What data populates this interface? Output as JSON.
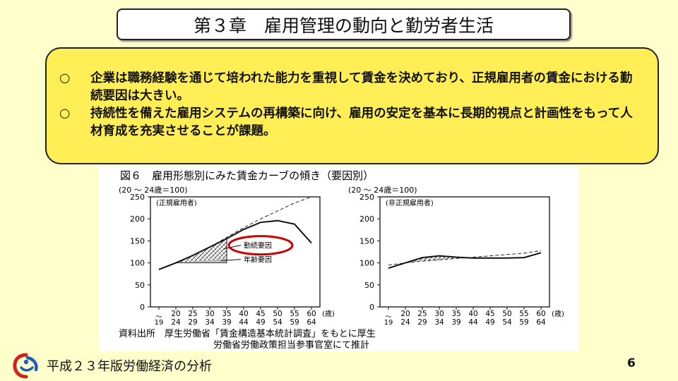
{
  "slide": {
    "title": "第３章　雇用管理の動向と勤労者生活",
    "bullets": [
      {
        "mark": "○",
        "text": "企業は職務経験を通じて培われた能力を重視して賃金を決めており、正規雇用者の賃金における勤続要因は大きい。"
      },
      {
        "mark": "○",
        "text": "持続性を備えた雇用システムの再構築に向け、雇用の安定を基本に長期的視点と計画性をもって人材育成を充実させることが課題。"
      }
    ],
    "footer": "平成２３年版労働経済の分析",
    "page_number": "6"
  },
  "figure": {
    "title": "図６　雇用形態別にみた賃金カーブの傾き（要因別）",
    "source_lines": [
      "資料出所　厚生労働省「賃金構造基本統計調査」をもとに厚生",
      "労働省労働政策担当参事官室にて推計"
    ],
    "y_unit": "(20 ～ 24歳＝100)",
    "x_unit": "(歳)",
    "y_ticks": [
      "0",
      "50",
      "100",
      "150",
      "200",
      "250"
    ],
    "x_ticks_top": [
      "20",
      "25",
      "30",
      "35",
      "40",
      "45",
      "50",
      "55",
      "60"
    ],
    "x_ticks_bottom": [
      "24",
      "29",
      "34",
      "39",
      "44",
      "49",
      "54",
      "59",
      "64"
    ],
    "x_first": "19",
    "panels": [
      {
        "label": "(正規雇用者)",
        "annotations": {
          "tenure": "勤続要因",
          "age": "年齢要因"
        }
      },
      {
        "label": "(非正規雇用者)"
      }
    ],
    "highlight_color": "#cc0000"
  },
  "chart_data": [
    {
      "type": "line",
      "title": "(正規雇用者)",
      "ylabel": "(20 ～ 24歳＝100)",
      "xlabel": "(歳)",
      "categories": [
        "～19",
        "20～24",
        "25～29",
        "30～34",
        "35～39",
        "40～44",
        "45～49",
        "50～54",
        "55～59",
        "60～64"
      ],
      "ylim": [
        0,
        250
      ],
      "series": [
        {
          "values": [
            85,
            100,
            117,
            136,
            155,
            176,
            192,
            196,
            188,
            145
          ]
        },
        {
          "values": [
            85,
            100,
            117,
            136,
            158,
            180,
            200,
            218,
            236,
            250
          ]
        }
      ],
      "shaded_regions": [
        {
          "name": "勤続要因",
          "x_range": [
            "20～24",
            "35～39"
          ],
          "from": 100,
          "to": "series"
        },
        {
          "name": "年齢要因",
          "x_range": [
            "20～24",
            "35～39"
          ],
          "from": 100,
          "to": 110
        }
      ]
    },
    {
      "type": "line",
      "title": "(非正規雇用者)",
      "ylabel": "(20 ～ 24歳＝100)",
      "xlabel": "(歳)",
      "categories": [
        "～19",
        "20～24",
        "25～29",
        "30～34",
        "35～39",
        "40～44",
        "45～49",
        "50～54",
        "55～59",
        "60～64"
      ],
      "ylim": [
        0,
        250
      ],
      "series": [
        {
          "values": [
            88,
            100,
            112,
            116,
            113,
            111,
            111,
            111,
            112,
            123
          ]
        },
        {
          "values": [
            95,
            100,
            104,
            107,
            110,
            113,
            116,
            119,
            122,
            128
          ]
        }
      ]
    }
  ]
}
